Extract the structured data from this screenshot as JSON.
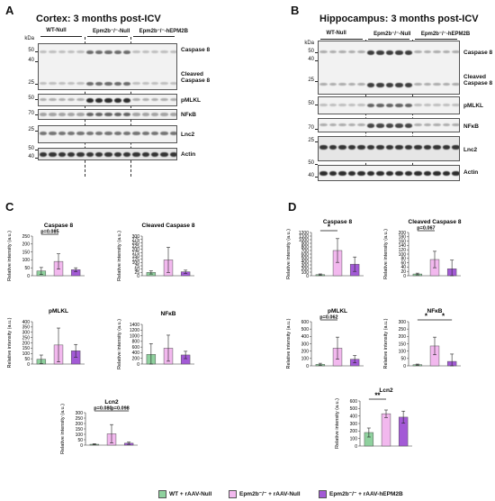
{
  "panels": {
    "A": {
      "letter": "A",
      "title": "Cortex: 3 months post-ICV"
    },
    "B": {
      "letter": "B",
      "title": "Hippocampus: 3 months post-ICV"
    },
    "C": {
      "letter": "C"
    },
    "D": {
      "letter": "D"
    }
  },
  "blot": {
    "kda_label": "kDa",
    "groups": [
      "WT-Null",
      "Epm2b⁻/⁻-Null",
      "Epm2b⁻/⁻-hEPM2B"
    ],
    "A_markers": [
      "50",
      "40",
      "25",
      "50",
      "70",
      "25",
      "50",
      "40"
    ],
    "A_rows": [
      "Caspase 8",
      "Cleaved\nCaspase 8",
      "pMLKL",
      "NFκB",
      "Lnc2",
      "Actin"
    ],
    "B_markers": [
      "50",
      "40",
      "25",
      "50",
      "70",
      "25",
      "50",
      "40"
    ],
    "B_rows": [
      "Caspase 8",
      "Cleaved\nCaspase 8",
      "pMLKL",
      "NFκB",
      "Lnc2",
      "Actin"
    ]
  },
  "y_axis_label": "Relative intensity (a.u.)",
  "legend": {
    "items": [
      {
        "label": "WT + rAAV-Null",
        "color": "#8fd19e"
      },
      {
        "label": "Epm2b⁻/⁻ + rAAV-Null",
        "color": "#f2b8ee"
      },
      {
        "label": "Epm2b⁻/⁻ + rAAV-hEPM2B",
        "color": "#a35ad6"
      }
    ]
  },
  "chart_data": [
    {
      "panel": "C",
      "type": "bar",
      "title": "Caspase 8",
      "ylim": [
        0,
        250
      ],
      "ticks": [
        0,
        50,
        100,
        150,
        200,
        250
      ],
      "values": [
        30,
        90,
        38
      ],
      "errors": [
        22,
        48,
        12
      ],
      "annotations": [
        {
          "from": 0,
          "to": 1,
          "text": "p=0.085"
        }
      ]
    },
    {
      "panel": "C",
      "type": "bar",
      "title": "Cleaved Caspase 8",
      "ylim": [
        0,
        300
      ],
      "ticks": [
        0,
        25,
        50,
        75,
        100,
        125,
        150,
        175,
        200,
        225,
        250,
        275,
        300
      ],
      "values": [
        25,
        120,
        30
      ],
      "errors": [
        12,
        95,
        12
      ],
      "annotations": []
    },
    {
      "panel": "C",
      "type": "bar",
      "title": "pMLKL",
      "ylim": [
        0,
        400
      ],
      "ticks": [
        0,
        50,
        100,
        150,
        200,
        250,
        300,
        350,
        400
      ],
      "values": [
        45,
        180,
        125
      ],
      "errors": [
        40,
        160,
        60
      ],
      "annotations": []
    },
    {
      "panel": "C",
      "type": "bar",
      "title": "NFκB",
      "ylim": [
        0,
        1400
      ],
      "ticks": [
        0,
        200,
        400,
        600,
        800,
        1000,
        1200,
        1400
      ],
      "values": [
        340,
        560,
        320
      ],
      "errors": [
        380,
        460,
        130
      ],
      "annotations": []
    },
    {
      "panel": "C",
      "type": "bar",
      "title": "Lcn2",
      "ylim": [
        0,
        300
      ],
      "ticks": [
        0,
        50,
        100,
        150,
        200,
        250,
        300
      ],
      "values": [
        8,
        105,
        18
      ],
      "errors": [
        5,
        85,
        10
      ],
      "annotations": [
        {
          "from": 0,
          "to": 1,
          "text": "p=0.080"
        },
        {
          "from": 1,
          "to": 2,
          "text": "p=0.098"
        }
      ]
    },
    {
      "panel": "D",
      "type": "bar",
      "title": "Caspase 8",
      "ylim": [
        0,
        1200
      ],
      "ticks": [
        0,
        100,
        200,
        300,
        400,
        500,
        600,
        700,
        800,
        900,
        1000,
        1100,
        1200
      ],
      "values": [
        30,
        700,
        320
      ],
      "errors": [
        20,
        330,
        200
      ],
      "annotations": [
        {
          "from": 0,
          "to": 1,
          "text": "*"
        }
      ]
    },
    {
      "panel": "D",
      "type": "bar",
      "title": "Cleaved Caspase 8",
      "ylim": [
        0,
        200
      ],
      "ticks": [
        0,
        20,
        40,
        60,
        80,
        100,
        120,
        140,
        160,
        180,
        200
      ],
      "values": [
        8,
        75,
        32
      ],
      "errors": [
        4,
        38,
        40
      ],
      "annotations": [
        {
          "from": 0,
          "to": 1,
          "text": "p=0.067"
        }
      ]
    },
    {
      "panel": "D",
      "type": "bar",
      "title": "pMLKL",
      "ylim": [
        0,
        600
      ],
      "ticks": [
        0,
        100,
        200,
        300,
        400,
        500,
        600
      ],
      "values": [
        20,
        240,
        90
      ],
      "errors": [
        15,
        150,
        50
      ],
      "annotations": [
        {
          "from": 0,
          "to": 1,
          "text": "p=0.062"
        }
      ]
    },
    {
      "panel": "D",
      "type": "bar",
      "title": "NFκB",
      "ylim": [
        0,
        300
      ],
      "ticks": [
        0,
        50,
        100,
        150,
        200,
        250,
        300
      ],
      "values": [
        8,
        135,
        30
      ],
      "errors": [
        4,
        60,
        50
      ],
      "annotations": [
        {
          "from": 0,
          "to": 1,
          "text": "*"
        },
        {
          "from": 1,
          "to": 2,
          "text": "*"
        }
      ]
    },
    {
      "panel": "D",
      "type": "bar",
      "title": "Lcn2",
      "ylim": [
        0,
        600
      ],
      "ticks": [
        0,
        100,
        200,
        300,
        400,
        500,
        600
      ],
      "values": [
        180,
        430,
        385
      ],
      "errors": [
        60,
        50,
        80
      ],
      "annotations": [
        {
          "from": 0,
          "to": 1,
          "text": "**"
        }
      ]
    }
  ]
}
